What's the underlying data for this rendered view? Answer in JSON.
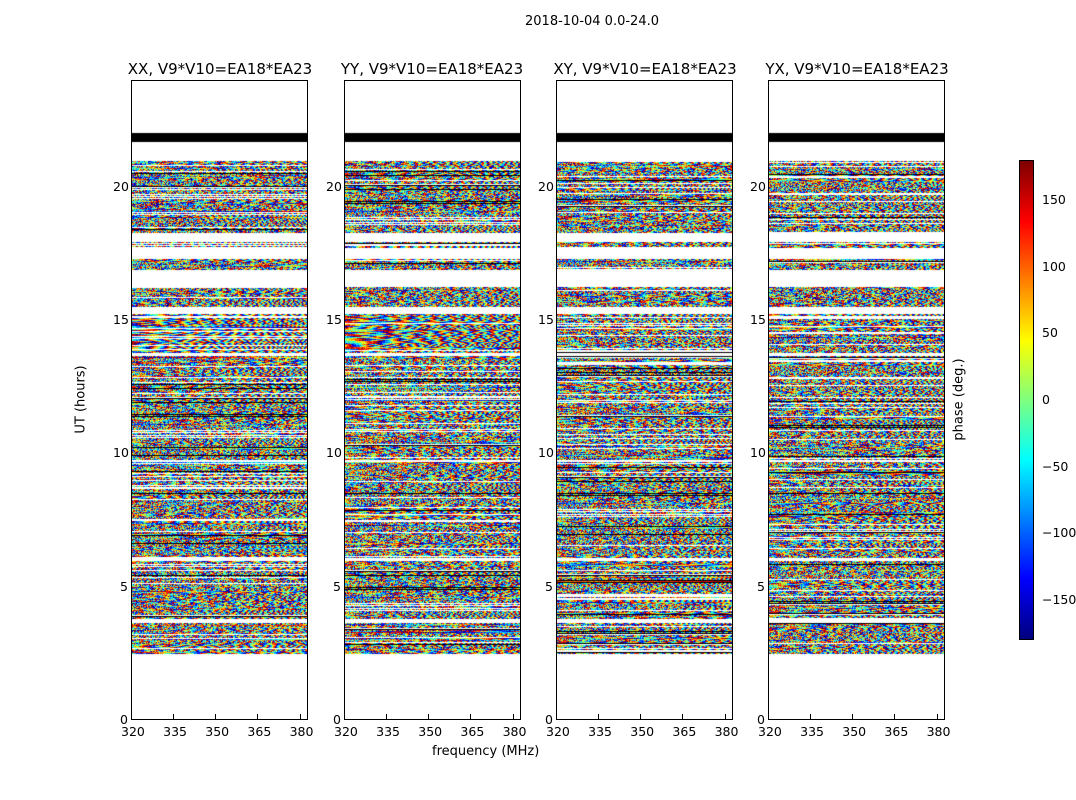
{
  "chart_data": {
    "type": "heatmap",
    "title": "2018-10-04 0.0-24.0",
    "xlabel": "frequency (MHz)",
    "ylabel": "UT (hours)",
    "xlim": [
      320,
      383
    ],
    "ylim": [
      0,
      24
    ],
    "xticks": [
      "320",
      "335",
      "350",
      "365",
      "380"
    ],
    "yticks": [
      "0",
      "5",
      "10",
      "15",
      "20"
    ],
    "panels": [
      {
        "title": "XX, V9*V10=EA18*EA23"
      },
      {
        "title": "YY, V9*V10=EA18*EA23"
      },
      {
        "title": "XY, V9*V10=EA18*EA23"
      },
      {
        "title": "YX, V9*V10=EA18*EA23"
      }
    ],
    "data_time_ranges_hours": [
      [
        2.45,
        3.6
      ],
      [
        3.75,
        5.95
      ],
      [
        6.05,
        9.65
      ],
      [
        9.75,
        13.65
      ],
      [
        13.75,
        15.25
      ],
      [
        15.5,
        16.25
      ],
      [
        16.9,
        17.3
      ],
      [
        17.7,
        17.95
      ],
      [
        18.3,
        21.0
      ]
    ],
    "flagged_black_hours": [
      21.7,
      22.05
    ],
    "colorbar": {
      "label": "phase (deg.)",
      "range": [
        -180,
        180
      ],
      "ticks": [
        "150",
        "100",
        "50",
        "0",
        "−50",
        "−100",
        "−150"
      ],
      "tick_values": [
        150,
        100,
        50,
        0,
        -50,
        -100,
        -150
      ],
      "colormap": "jet"
    }
  }
}
